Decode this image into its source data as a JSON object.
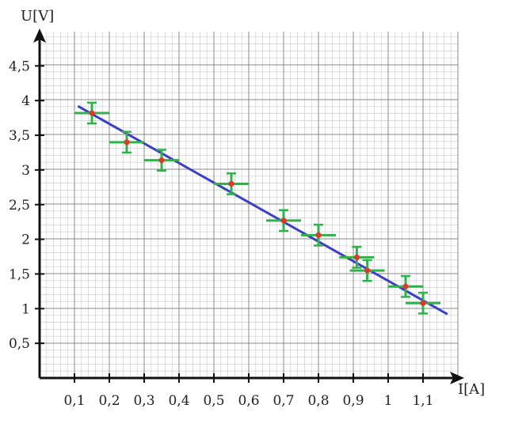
{
  "chart_data": {
    "type": "scatter",
    "xlabel": "I[A]",
    "ylabel": "U[V]",
    "xlim": [
      0,
      1.2
    ],
    "ylim": [
      0,
      5
    ],
    "grid": true,
    "x_ticks": [
      0.1,
      0.2,
      0.3,
      0.4,
      0.5,
      0.6,
      0.7,
      0.8,
      0.9,
      1.0,
      1.1
    ],
    "x_tick_labels": [
      "0,1",
      "0,2",
      "0,3",
      "0,4",
      "0,5",
      "0,6",
      "0,7",
      "0,8",
      "0,9",
      "1",
      "1,1"
    ],
    "y_ticks": [
      0.5,
      1,
      1.5,
      2,
      2.5,
      3,
      3.5,
      4,
      4.5
    ],
    "y_tick_labels": [
      "0,5",
      "1",
      "1,5",
      "2",
      "2,5",
      "3",
      "3,5",
      "4",
      "4,5"
    ],
    "points": [
      {
        "x": 0.15,
        "y": 3.82,
        "x_err": 0.05,
        "y_err": 0.15
      },
      {
        "x": 0.25,
        "y": 3.4,
        "x_err": 0.05,
        "y_err": 0.15
      },
      {
        "x": 0.35,
        "y": 3.14,
        "x_err": 0.05,
        "y_err": 0.15
      },
      {
        "x": 0.55,
        "y": 2.8,
        "x_err": 0.05,
        "y_err": 0.15
      },
      {
        "x": 0.7,
        "y": 2.27,
        "x_err": 0.05,
        "y_err": 0.15
      },
      {
        "x": 0.8,
        "y": 2.06,
        "x_err": 0.05,
        "y_err": 0.15
      },
      {
        "x": 0.91,
        "y": 1.74,
        "x_err": 0.05,
        "y_err": 0.15
      },
      {
        "x": 0.94,
        "y": 1.55,
        "x_err": 0.05,
        "y_err": 0.15
      },
      {
        "x": 1.05,
        "y": 1.32,
        "x_err": 0.05,
        "y_err": 0.15
      },
      {
        "x": 1.1,
        "y": 1.08,
        "x_err": 0.05,
        "y_err": 0.15
      }
    ],
    "fit_line": {
      "x1": 0.11,
      "y1": 3.92,
      "x2": 1.17,
      "y2": 0.92
    },
    "colors": {
      "point": "#d93a2b",
      "error_bar": "#2eb34a",
      "fit_line": "#3b3fc4",
      "axis": "#111111",
      "grid_major": "#8a8a8a",
      "grid_minor": "#cdcdcd"
    }
  }
}
